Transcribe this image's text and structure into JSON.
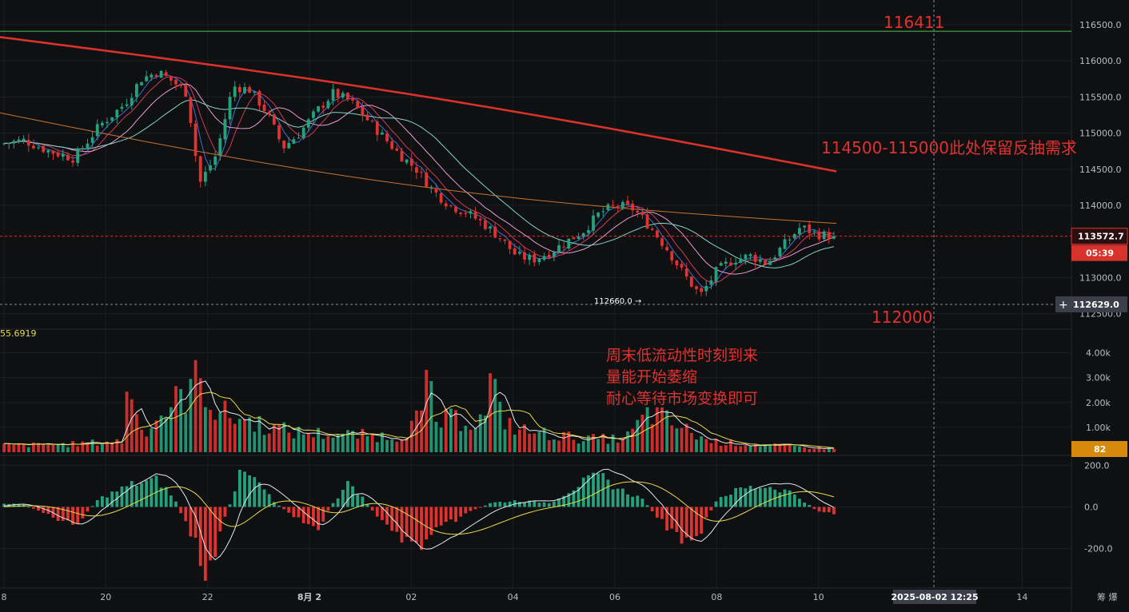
{
  "chart_data": {
    "type": "candlestick",
    "title": "",
    "price_axis": {
      "ticks": [
        "116500.0",
        "116000.0",
        "115500.0",
        "115000.0",
        "114500.0",
        "114000.0",
        "113000.0",
        "112500.0"
      ],
      "tick_values": [
        116500,
        116000,
        115500,
        115000,
        114500,
        114000,
        113000,
        112500
      ],
      "range": [
        112330,
        116600
      ]
    },
    "volume_axis": {
      "ticks": [
        "4.00k",
        "3.00k",
        "2.00k",
        "1.00k"
      ],
      "tick_values": [
        4000,
        3000,
        2000,
        1000
      ],
      "max": 4500,
      "indicator_value": "55.6919",
      "current_tag": "82"
    },
    "macd_axis": {
      "ticks": [
        "200.0",
        "0.0",
        "-200.0"
      ],
      "tick_values": [
        200,
        0,
        -200
      ],
      "range": [
        -390,
        240
      ]
    },
    "x_axis": {
      "ticks": [
        "8",
        "20",
        "22",
        "8月 2",
        "02",
        "04",
        "06",
        "08",
        "10",
        "14"
      ],
      "tick_positions": [
        0,
        0.0952,
        0.1905,
        0.2857,
        0.381,
        0.4762,
        0.5714,
        0.6667,
        0.7619,
        0.9524
      ]
    },
    "crosshair_time": "2025-08-02 12:25",
    "tools_label": "筹 爆",
    "current_price": {
      "value": 113572.7,
      "label": "113572.7",
      "countdown": "05:39"
    },
    "crosshair_price": {
      "value": 112629.0,
      "label": "112629.0"
    },
    "resistance_line": {
      "value": 116411,
      "label": "116411"
    },
    "support_label": "112000",
    "low_marker": {
      "value": 112660.0,
      "label": "112660.0"
    },
    "annotations": {
      "zone": "114500-115000此处保留反抽需求",
      "note_lines": [
        "周末低流动性时刻到来",
        "量能开始萎缩",
        "耐心等待市场变换即可"
      ]
    },
    "price_anchors": {
      "t": [
        0.0,
        0.03,
        0.06,
        0.09,
        0.12,
        0.15,
        0.17,
        0.19,
        0.21,
        0.225,
        0.24,
        0.26,
        0.28,
        0.3,
        0.32,
        0.34,
        0.36,
        0.38,
        0.4,
        0.42,
        0.44,
        0.46,
        0.48,
        0.5,
        0.52,
        0.54,
        0.56,
        0.58,
        0.6,
        0.62,
        0.64,
        0.66,
        0.7,
        0.72,
        0.74,
        0.76,
        0.78,
        0.8,
        0.82,
        0.84,
        0.86,
        0.88,
        0.9,
        0.92,
        0.94,
        0.96,
        0.98,
        1.0
      ],
      "price": [
        114850,
        114900,
        114750,
        114650,
        115100,
        115400,
        115750,
        115850,
        115700,
        115550,
        114300,
        114700,
        115650,
        115600,
        115300,
        114800,
        115000,
        115300,
        115550,
        115450,
        115200,
        114950,
        114700,
        114500,
        114200,
        114000,
        113900,
        113750,
        113550,
        113300,
        113250,
        113350,
        113650,
        113900,
        114000,
        113950,
        113700,
        113400,
        113050,
        112750,
        113100,
        113250,
        113300,
        113200,
        113450,
        113700,
        113600,
        113572
      ]
    },
    "ma_red_thick": {
      "start": 116330,
      "end": 114470
    },
    "ma_orange": {
      "start": 115280,
      "end": 113750
    },
    "volume_anchors": {
      "t": [
        0.0,
        0.08,
        0.15,
        0.155,
        0.17,
        0.22,
        0.24,
        0.245,
        0.26,
        0.3,
        0.35,
        0.4,
        0.48,
        0.51,
        0.515,
        0.52,
        0.55,
        0.58,
        0.59,
        0.6,
        0.62,
        0.7,
        0.75,
        0.78,
        0.8,
        0.85,
        0.9,
        1.0
      ],
      "vol": [
        300,
        350,
        500,
        3700,
        900,
        2500,
        3300,
        3100,
        1800,
        1400,
        900,
        800,
        700,
        1800,
        4300,
        1300,
        1500,
        1400,
        3300,
        1700,
        1000,
        600,
        600,
        1800,
        1400,
        500,
        350,
        150
      ]
    },
    "macd_anchors": {
      "t": [
        0.0,
        0.03,
        0.06,
        0.09,
        0.12,
        0.16,
        0.19,
        0.21,
        0.235,
        0.25,
        0.27,
        0.29,
        0.31,
        0.33,
        0.36,
        0.38,
        0.4,
        0.42,
        0.44,
        0.46,
        0.5,
        0.53,
        0.56,
        0.59,
        0.62,
        0.66,
        0.7,
        0.72,
        0.74,
        0.77,
        0.8,
        0.83,
        0.86,
        0.89,
        0.92,
        0.95,
        0.98,
        1.0
      ],
      "hist": [
        20,
        10,
        -40,
        -90,
        40,
        110,
        130,
        40,
        -180,
        -360,
        -60,
        170,
        120,
        20,
        -60,
        -120,
        20,
        120,
        20,
        -80,
        -200,
        -100,
        -30,
        20,
        30,
        20,
        120,
        150,
        90,
        40,
        -100,
        -200,
        40,
        90,
        100,
        70,
        -20,
        -30
      ]
    }
  }
}
